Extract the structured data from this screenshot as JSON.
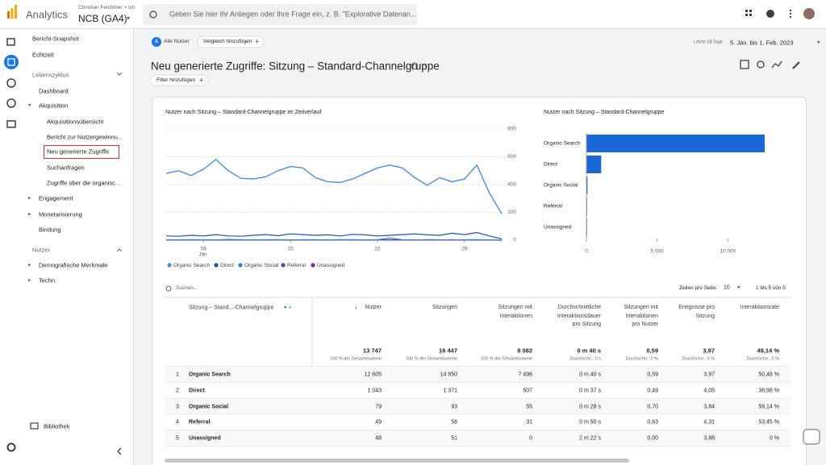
{
  "header": {
    "product": "Analytics",
    "account": "Christian Feichtner > Ich",
    "property": "NCB (GA4)",
    "search_placeholder": "Geben Sie hier Ihr Anliegen oder Ihre Frage ein, z. B. \"Explorative Datenan..."
  },
  "nav": {
    "top": [
      "Bericht-Snapshot",
      "Echtzeit"
    ],
    "lifecycle_title": "Lebenszyklus",
    "lifecycle": [
      "Dashboard",
      "Akquisition",
      "Akquisitionsübersicht",
      "Bericht zur Nutzergewinnu...",
      "Neu generierte Zugriffe",
      "Suchanfragen",
      "Zugriffe über die organisc...",
      "Engagement",
      "Monetarisierung",
      "Bindung"
    ],
    "users_title": "Nutzer",
    "users": [
      "Demografische Merkmale",
      "Techn."
    ],
    "library": "Bibliothek"
  },
  "toolbar": {
    "segment_letter": "A",
    "segment": "Alle Nutzer",
    "compare": "Vergleich hinzufügen",
    "date_caption": "Letzte 28 Tage",
    "date_range": "5. Jän. bis 1. Feb. 2023",
    "title": "Neu generierte Zugriffe: Sitzung – Standard-Channelgruppe",
    "filter": "Filter hinzufügen"
  },
  "chart_data": [
    {
      "type": "line",
      "title": "Nutzer nach Sitzung – Standard-Channelgruppe im Zeitverlauf",
      "categories": [
        null,
        null,
        null,
        "08",
        null,
        null,
        null,
        null,
        null,
        null,
        "15",
        null,
        null,
        null,
        null,
        null,
        null,
        "22",
        null,
        null,
        null,
        null,
        null,
        null,
        "29",
        null,
        null,
        null
      ],
      "month_label": "Jän.",
      "ylim": [
        0,
        800
      ],
      "yticks": [
        0,
        200,
        400,
        600,
        800
      ],
      "grid": true,
      "series": [
        {
          "name": "Organic Search",
          "color": "#4a8fe0",
          "values": [
            480,
            500,
            465,
            510,
            580,
            500,
            445,
            440,
            455,
            500,
            530,
            520,
            450,
            420,
            415,
            440,
            480,
            520,
            540,
            520,
            450,
            395,
            450,
            420,
            440,
            540,
            340,
            190
          ]
        },
        {
          "name": "Direct",
          "color": "#1f4fb8",
          "values": [
            30,
            28,
            35,
            30,
            40,
            30,
            28,
            35,
            40,
            32,
            45,
            40,
            35,
            38,
            30,
            42,
            38,
            30,
            35,
            40,
            45,
            38,
            35,
            50,
            40,
            55,
            30,
            10
          ]
        },
        {
          "name": "Organic Social",
          "color": "#2f7fe0",
          "values": [
            3,
            2,
            4,
            3,
            2,
            5,
            3,
            2,
            3,
            4,
            2,
            3,
            3,
            2,
            4,
            3,
            2,
            3,
            15,
            3,
            2,
            4,
            3,
            2,
            3,
            4,
            2,
            1
          ]
        },
        {
          "name": "Referral",
          "color": "#5a3fc8",
          "values": [
            2,
            1,
            2,
            2,
            1,
            2,
            3,
            2,
            1,
            2,
            2,
            1,
            2,
            2,
            3,
            1,
            2,
            2,
            3,
            2,
            1,
            2,
            2,
            1,
            2,
            2,
            1,
            0
          ]
        },
        {
          "name": "Unassigned",
          "color": "#7a26b8",
          "values": [
            1,
            2,
            1,
            2,
            1,
            2,
            1,
            3,
            2,
            2,
            1,
            2,
            2,
            1,
            2,
            2,
            1,
            3,
            2,
            1,
            2,
            1,
            2,
            3,
            2,
            1,
            2,
            0
          ]
        }
      ]
    },
    {
      "type": "bar",
      "orientation": "horizontal",
      "title": "Nutzer nach Sitzung – Standard-Channelgruppe",
      "categories": [
        "Organic Search",
        "Direct",
        "Organic Social",
        "Referral",
        "Unassigned"
      ],
      "values": [
        12605,
        1043,
        79,
        49,
        48
      ],
      "color": "#1a67d8",
      "xlim": [
        0,
        15000
      ],
      "xticks": [
        0,
        {
          "value": 5000,
          "label": "5 000"
        },
        {
          "value": 10000,
          "label": "10 000"
        }
      ]
    }
  ],
  "table": {
    "search_placeholder": "Suchen...",
    "rows_per_page_label": "Zeilen pro Seite:",
    "rows_per_page": "10",
    "pagination": "1 bis 5 von 5",
    "columns": [
      "Sitzung – Stand...-Channelgruppe",
      "Nutzer",
      "Sitzungen",
      "Sitzungen mit Interaktionen",
      "Durchschnittliche Interaktionsdauer pro Sitzung",
      "Sitzungen mit Interaktionen pro Nutzer",
      "Ereignisse pro Sitzung",
      "Interaktionsrate"
    ],
    "totals": [
      "13 747",
      "16 447",
      "8 082",
      "0 m 40 s",
      "0,59",
      "3,97",
      "49,14 %"
    ],
    "total_notes": [
      "100 % der Gesamtsumme",
      "100 % der Gesamtsumme",
      "100 % der Gesamtsumme",
      "Durchschn.: 0 s",
      "Durchschn.: 0 %",
      "Durchschn.: 0 %",
      "Durchschn.: 0 %"
    ],
    "rows": [
      {
        "index": "1",
        "cells": [
          "Organic Search",
          "12 605",
          "14 850",
          "7 496",
          "0 m 40 s",
          "0,59",
          "3,97",
          "50,48 %"
        ]
      },
      {
        "index": "2",
        "cells": [
          "Direct",
          "1 043",
          "1 371",
          "507",
          "0 m 37 s",
          "0,49",
          "4,05",
          "36,98 %"
        ]
      },
      {
        "index": "3",
        "cells": [
          "Organic Social",
          "79",
          "93",
          "55",
          "0 m 28 s",
          "0,70",
          "3,84",
          "59,14 %"
        ]
      },
      {
        "index": "4",
        "cells": [
          "Referral",
          "49",
          "58",
          "31",
          "0 m 50 s",
          "0,63",
          "4,31",
          "53,45 %"
        ]
      },
      {
        "index": "5",
        "cells": [
          "Unassigned",
          "48",
          "51",
          "0",
          "2 m 22 s",
          "0,00",
          "3,88",
          "0 %"
        ]
      }
    ]
  }
}
